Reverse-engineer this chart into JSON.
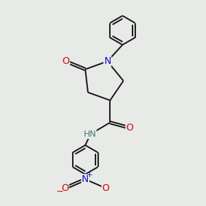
{
  "background_color": "#e8eae8",
  "bond_color": "#1a1a1a",
  "bond_width": 1.5,
  "atom_colors": {
    "N": "#1010cc",
    "O": "#cc1010",
    "H": "#4a7a7a"
  },
  "font_size": 9.5,
  "dbl_off": 0.055
}
